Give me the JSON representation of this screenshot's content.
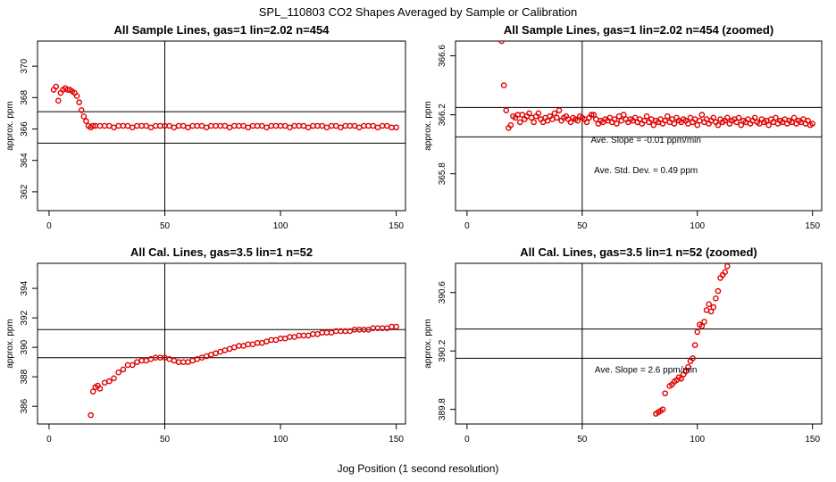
{
  "figure": {
    "title": "SPL_110803  CO2 Shapes Averaged by Sample or Calibration",
    "xlabel": "Jog Position (1 second resolution)",
    "point_color": "#e00000",
    "line_color": "#000000"
  },
  "chart_data": [
    {
      "type": "scatter",
      "title": "All Sample Lines, gas=1 lin=2.02 n=454",
      "xlabel": "",
      "ylabel": "approx. ppm",
      "xlim": [
        -5,
        154
      ],
      "ylim": [
        360.8,
        371.6
      ],
      "xticks": [
        0,
        50,
        100,
        150
      ],
      "yticks": [
        362,
        364,
        366,
        368,
        370
      ],
      "vline": 50,
      "hlines": [
        365.1,
        367.1
      ],
      "annotations": [],
      "x": [
        2,
        3,
        4,
        5,
        6,
        7,
        8,
        9,
        10,
        11,
        12,
        13,
        14,
        15,
        16,
        17,
        18,
        19,
        20,
        22,
        24,
        26,
        28,
        30,
        32,
        34,
        36,
        38,
        40,
        42,
        44,
        46,
        48,
        50,
        52,
        54,
        56,
        58,
        60,
        62,
        64,
        66,
        68,
        70,
        72,
        74,
        76,
        78,
        80,
        82,
        84,
        86,
        88,
        90,
        92,
        94,
        96,
        98,
        100,
        102,
        104,
        106,
        108,
        110,
        112,
        114,
        116,
        118,
        120,
        122,
        124,
        126,
        128,
        130,
        132,
        134,
        136,
        138,
        140,
        142,
        144,
        146,
        148,
        150
      ],
      "y": [
        368.5,
        368.7,
        367.8,
        368.3,
        368.5,
        368.6,
        368.5,
        368.5,
        368.4,
        368.3,
        368.1,
        367.7,
        367.2,
        366.8,
        366.5,
        366.2,
        366.1,
        366.2,
        366.2,
        366.2,
        366.2,
        366.2,
        366.1,
        366.2,
        366.2,
        366.2,
        366.1,
        366.2,
        366.2,
        366.2,
        366.1,
        366.2,
        366.2,
        366.2,
        366.2,
        366.1,
        366.2,
        366.2,
        366.1,
        366.2,
        366.2,
        366.2,
        366.1,
        366.2,
        366.2,
        366.2,
        366.2,
        366.1,
        366.2,
        366.2,
        366.2,
        366.1,
        366.2,
        366.2,
        366.2,
        366.1,
        366.2,
        366.2,
        366.2,
        366.2,
        366.1,
        366.2,
        366.2,
        366.2,
        366.1,
        366.2,
        366.2,
        366.2,
        366.1,
        366.2,
        366.2,
        366.1,
        366.2,
        366.2,
        366.2,
        366.1,
        366.2,
        366.2,
        366.2,
        366.1,
        366.2,
        366.2,
        366.1,
        366.1
      ]
    },
    {
      "type": "scatter",
      "title": "All Sample Lines, gas=1 lin=2.02 n=454 (zoomed)",
      "xlabel": "",
      "ylabel": "approx. ppm",
      "xlim": [
        -5,
        154
      ],
      "ylim": [
        365.55,
        366.7
      ],
      "xticks": [
        0,
        50,
        100,
        150
      ],
      "yticks": [
        365.8,
        366.2,
        366.6
      ],
      "vline": 50,
      "hlines": [
        366.25,
        366.05
      ],
      "annotations": [
        "Ave. Slope =  -0.01  ppm/min",
        "Ave. Std. Dev. =  0.49  ppm"
      ],
      "x": [
        15,
        16,
        17,
        18,
        19,
        20,
        21,
        22,
        23,
        24,
        25,
        26,
        27,
        28,
        29,
        30,
        31,
        32,
        33,
        34,
        35,
        36,
        37,
        38,
        39,
        40,
        41,
        42,
        43,
        44,
        45,
        46,
        47,
        48,
        49,
        50,
        51,
        52,
        53,
        54,
        55,
        56,
        57,
        58,
        59,
        60,
        61,
        62,
        63,
        64,
        65,
        66,
        67,
        68,
        69,
        70,
        71,
        72,
        73,
        74,
        75,
        76,
        77,
        78,
        79,
        80,
        81,
        82,
        83,
        84,
        85,
        86,
        87,
        88,
        89,
        90,
        91,
        92,
        93,
        94,
        95,
        96,
        97,
        98,
        99,
        100,
        101,
        102,
        103,
        104,
        105,
        106,
        107,
        108,
        109,
        110,
        111,
        112,
        113,
        114,
        115,
        116,
        117,
        118,
        119,
        120,
        121,
        122,
        123,
        124,
        125,
        126,
        127,
        128,
        129,
        130,
        131,
        132,
        133,
        134,
        135,
        136,
        137,
        138,
        139,
        140,
        141,
        142,
        143,
        144,
        145,
        146,
        147,
        148,
        149,
        150
      ],
      "y": [
        366.7,
        366.4,
        366.23,
        366.11,
        366.13,
        366.19,
        366.18,
        366.2,
        366.15,
        366.2,
        366.17,
        366.19,
        366.21,
        366.18,
        366.15,
        366.19,
        366.21,
        366.17,
        366.15,
        366.18,
        366.16,
        366.19,
        366.17,
        366.21,
        366.18,
        366.23,
        366.16,
        366.18,
        366.19,
        366.17,
        366.15,
        366.18,
        366.17,
        366.16,
        366.19,
        366.18,
        366.17,
        366.15,
        366.18,
        366.2,
        366.2,
        366.17,
        366.14,
        366.16,
        366.15,
        366.17,
        366.16,
        366.18,
        366.15,
        366.17,
        366.14,
        366.19,
        366.16,
        366.2,
        366.17,
        366.15,
        366.17,
        366.16,
        366.18,
        366.15,
        366.17,
        366.14,
        366.16,
        366.19,
        366.15,
        366.17,
        366.13,
        366.16,
        366.15,
        366.17,
        366.14,
        366.16,
        366.19,
        366.15,
        366.17,
        366.14,
        366.18,
        366.16,
        366.15,
        366.17,
        366.16,
        366.14,
        366.18,
        366.15,
        366.17,
        366.13,
        366.16,
        366.2,
        366.15,
        366.17,
        366.14,
        366.16,
        366.18,
        366.15,
        366.13,
        366.17,
        366.15,
        366.16,
        366.18,
        366.14,
        366.16,
        366.17,
        366.15,
        366.18,
        366.13,
        366.16,
        366.15,
        366.17,
        366.14,
        366.16,
        366.18,
        366.15,
        366.14,
        366.17,
        366.15,
        366.16,
        366.13,
        366.17,
        366.15,
        366.18,
        366.14,
        366.16,
        366.15,
        366.17,
        366.14,
        366.16,
        366.15,
        366.18,
        366.14,
        366.16,
        366.15,
        366.17,
        366.14,
        366.16,
        366.13,
        366.14
      ]
    },
    {
      "type": "scatter",
      "title": "All Cal. Lines, gas=3.5 lin=1 n=52",
      "xlabel": "",
      "ylabel": "approx. ppm",
      "xlim": [
        -5,
        154
      ],
      "ylim": [
        384.8,
        395.7
      ],
      "xticks": [
        0,
        50,
        100,
        150
      ],
      "yticks": [
        386,
        388,
        390,
        392,
        394
      ],
      "vline": 50,
      "hlines": [
        391.2,
        389.3
      ],
      "annotations": [],
      "x": [
        18,
        19,
        20,
        21,
        22,
        24,
        26,
        28,
        30,
        32,
        34,
        36,
        38,
        40,
        42,
        44,
        46,
        48,
        50,
        52,
        54,
        56,
        58,
        60,
        62,
        64,
        66,
        68,
        70,
        72,
        74,
        76,
        78,
        80,
        82,
        84,
        86,
        88,
        90,
        92,
        94,
        96,
        98,
        100,
        102,
        104,
        106,
        108,
        110,
        112,
        114,
        116,
        118,
        120,
        122,
        124,
        126,
        128,
        130,
        132,
        134,
        136,
        138,
        140,
        142,
        144,
        146,
        148,
        150
      ],
      "y": [
        385.4,
        387.0,
        387.3,
        387.4,
        387.2,
        387.6,
        387.7,
        387.9,
        388.3,
        388.5,
        388.8,
        388.8,
        389.0,
        389.1,
        389.1,
        389.2,
        389.3,
        389.3,
        389.3,
        389.2,
        389.1,
        389.0,
        389.0,
        389.0,
        389.1,
        389.2,
        389.3,
        389.4,
        389.5,
        389.6,
        389.7,
        389.8,
        389.9,
        390.0,
        390.1,
        390.1,
        390.2,
        390.2,
        390.3,
        390.3,
        390.4,
        390.5,
        390.5,
        390.6,
        390.6,
        390.7,
        390.7,
        390.8,
        390.8,
        390.8,
        390.9,
        390.9,
        391.0,
        391.0,
        391.0,
        391.1,
        391.1,
        391.1,
        391.1,
        391.2,
        391.2,
        391.2,
        391.2,
        391.3,
        391.3,
        391.3,
        391.3,
        391.4,
        391.4
      ]
    },
    {
      "type": "scatter",
      "title": "All Cal. Lines, gas=3.5 lin=1 n=52 (zoomed)",
      "xlabel": "",
      "ylabel": "approx. ppm",
      "xlim": [
        -5,
        154
      ],
      "ylim": [
        389.7,
        390.8
      ],
      "xticks": [
        0,
        50,
        100,
        150
      ],
      "yticks": [
        389.8,
        390.2,
        390.6
      ],
      "vline": 50,
      "hlines": [
        390.35,
        390.15
      ],
      "annotations": [
        "Ave. Slope =  2.6  ppm/min"
      ],
      "x": [
        82,
        83,
        84,
        85,
        86,
        88,
        89,
        90,
        91,
        92,
        93,
        94,
        95,
        96,
        97,
        98,
        99,
        100,
        101,
        102,
        103,
        104,
        105,
        106,
        107,
        108,
        109,
        110,
        111,
        112,
        113
      ],
      "y": [
        389.77,
        389.78,
        389.79,
        389.8,
        389.91,
        389.96,
        389.97,
        389.99,
        390.0,
        390.02,
        390.01,
        390.04,
        390.06,
        390.09,
        390.13,
        390.15,
        390.24,
        390.33,
        390.38,
        390.37,
        390.4,
        390.48,
        390.52,
        390.47,
        390.5,
        390.56,
        390.61,
        390.7,
        390.72,
        390.74,
        390.78
      ]
    }
  ]
}
